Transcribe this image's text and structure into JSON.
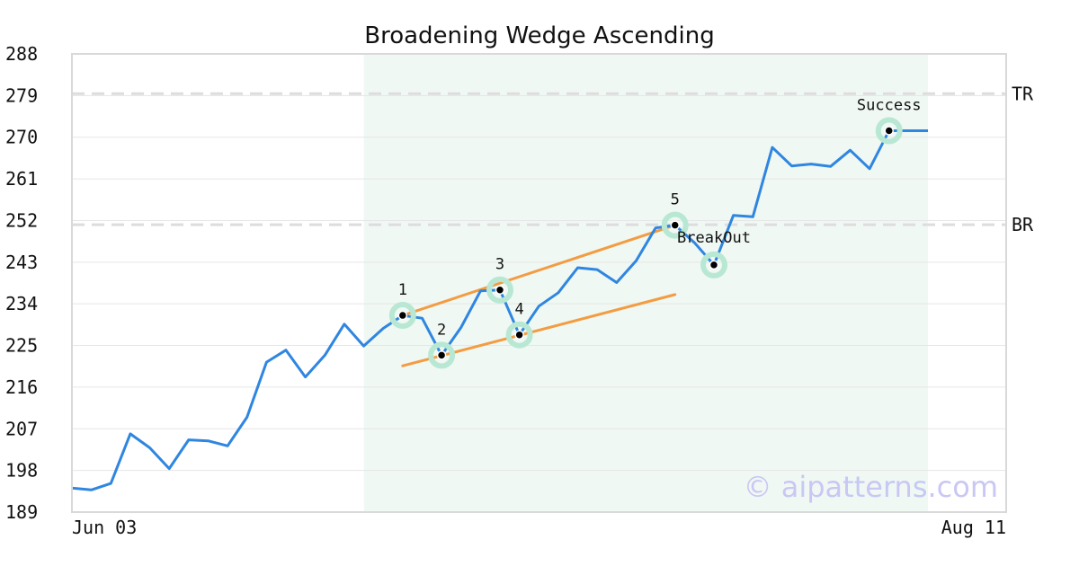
{
  "chart_data": {
    "type": "line",
    "title": "Broadening Wedge Ascending",
    "xlabel": "",
    "ylabel": "",
    "ylim": [
      189,
      288
    ],
    "y_ticks": [
      189,
      198,
      207,
      216,
      225,
      234,
      243,
      252,
      261,
      270,
      279,
      288
    ],
    "x_tick_labels": [
      "Jun 03",
      "Aug 11"
    ],
    "grid": true,
    "colors": {
      "price": "#2f86e0",
      "trendline": "#f39c42",
      "highlight": "#f0f8f4",
      "marker_ring": "#b8e8d4",
      "level": "#dddddd",
      "grid": "#e6e6e6"
    },
    "series": [
      {
        "values": [
          194.2,
          193.8,
          195.2,
          205.9,
          202.9,
          198.4,
          204.6,
          204.4,
          203.3,
          209.5,
          221.4,
          224.0,
          218.2,
          222.9,
          229.6,
          224.9,
          228.7,
          231.5,
          230.9,
          222.9,
          228.9,
          236.8,
          237.0,
          227.3,
          233.5,
          236.4,
          241.8,
          241.4,
          238.6,
          243.3,
          250.4,
          251.0,
          247.2,
          242.4,
          253.1,
          252.8,
          267.8,
          263.8,
          264.2,
          263.7,
          267.2,
          263.2,
          271.4,
          271.4,
          271.4
        ]
      }
    ],
    "highlight_range": {
      "start_index": 15,
      "end_index": 44
    },
    "levels": [
      {
        "label": "TR",
        "value": 279.4
      },
      {
        "label": "BR",
        "value": 251.1
      }
    ],
    "trendlines": [
      {
        "from": {
          "index": 17,
          "value": 231.5
        },
        "to": {
          "index": 31,
          "value": 251.0
        }
      },
      {
        "from": {
          "index": 17,
          "value": 220.6
        },
        "to": {
          "index": 31,
          "value": 236.0
        }
      }
    ],
    "points": [
      {
        "label": "1",
        "index": 17,
        "value": 231.5,
        "label_pos": "above"
      },
      {
        "label": "2",
        "index": 19,
        "value": 222.9,
        "label_pos": "above"
      },
      {
        "label": "3",
        "index": 22,
        "value": 237.0,
        "label_pos": "above"
      },
      {
        "label": "4",
        "index": 23,
        "value": 227.3,
        "label_pos": "above"
      },
      {
        "label": "5",
        "index": 31,
        "value": 251.0,
        "label_pos": "above"
      },
      {
        "label": "BreakOut",
        "index": 33,
        "value": 242.4,
        "label_pos": "above-far"
      },
      {
        "label": "Success",
        "index": 42,
        "value": 271.4,
        "label_pos": "above"
      }
    ],
    "watermark": "© aipatterns.com"
  }
}
